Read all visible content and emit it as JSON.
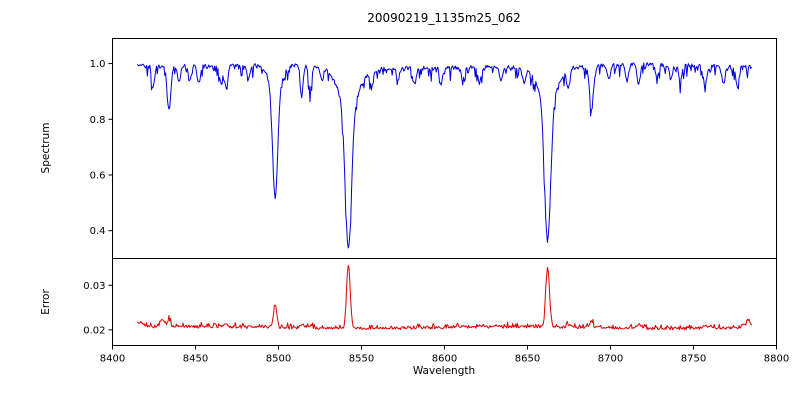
{
  "axes": {
    "xlabel": "Wavelength",
    "xlim": [
      8400,
      8800
    ],
    "xticks": [
      8400,
      8450,
      8500,
      8550,
      8600,
      8650,
      8700,
      8750,
      8800
    ],
    "xtick_labels": [
      "8400",
      "8450",
      "8500",
      "8550",
      "8600",
      "8650",
      "8700",
      "8750",
      "8800"
    ]
  },
  "chart_data": [
    {
      "type": "line",
      "panel": "spectrum",
      "title": "20090219_1135m25_062",
      "ylabel": "Spectrum",
      "color": "#0000dd",
      "ylim": [
        0.3,
        1.09
      ],
      "yticks": [
        0.4,
        0.6,
        0.8,
        1.0
      ],
      "ytick_labels": [
        "0.4",
        "0.6",
        "0.8",
        "1.0"
      ],
      "x_start": 8415,
      "x_end": 8785,
      "continuum": 0.99,
      "noise": {
        "jitter": 0.012,
        "dip_strength": 0.045
      },
      "absorption_lines": [
        {
          "wavelength": 8498.0,
          "depth": 0.4,
          "width": 1.5
        },
        {
          "wavelength": 8498.0,
          "depth": 0.08,
          "width": 4.0
        },
        {
          "wavelength": 8542.1,
          "depth": 0.52,
          "width": 1.9
        },
        {
          "wavelength": 8542.1,
          "depth": 0.13,
          "width": 6.5
        },
        {
          "wavelength": 8662.1,
          "depth": 0.5,
          "width": 1.8
        },
        {
          "wavelength": 8662.1,
          "depth": 0.12,
          "width": 5.5
        },
        {
          "wavelength": 8424.5,
          "depth": 0.07,
          "width": 0.9
        },
        {
          "wavelength": 8434.0,
          "depth": 0.16,
          "width": 1.1
        },
        {
          "wavelength": 8440.0,
          "depth": 0.06,
          "width": 0.9
        },
        {
          "wavelength": 8446.5,
          "depth": 0.05,
          "width": 0.9
        },
        {
          "wavelength": 8452.0,
          "depth": 0.06,
          "width": 0.9
        },
        {
          "wavelength": 8465.5,
          "depth": 0.06,
          "width": 0.9
        },
        {
          "wavelength": 8468.5,
          "depth": 0.07,
          "width": 0.9
        },
        {
          "wavelength": 8482.0,
          "depth": 0.05,
          "width": 0.9
        },
        {
          "wavelength": 8514.0,
          "depth": 0.1,
          "width": 0.9
        },
        {
          "wavelength": 8519.0,
          "depth": 0.09,
          "width": 0.9
        },
        {
          "wavelength": 8526.0,
          "depth": 0.04,
          "width": 0.9
        },
        {
          "wavelength": 8556.0,
          "depth": 0.05,
          "width": 0.9
        },
        {
          "wavelength": 8572.0,
          "depth": 0.04,
          "width": 0.9
        },
        {
          "wavelength": 8582.0,
          "depth": 0.06,
          "width": 0.9
        },
        {
          "wavelength": 8598.0,
          "depth": 0.06,
          "width": 0.9
        },
        {
          "wavelength": 8611.0,
          "depth": 0.05,
          "width": 0.9
        },
        {
          "wavelength": 8621.0,
          "depth": 0.06,
          "width": 0.9
        },
        {
          "wavelength": 8634.0,
          "depth": 0.05,
          "width": 0.9
        },
        {
          "wavelength": 8648.0,
          "depth": 0.05,
          "width": 0.9
        },
        {
          "wavelength": 8674.5,
          "depth": 0.07,
          "width": 0.9
        },
        {
          "wavelength": 8688.5,
          "depth": 0.15,
          "width": 1.2
        },
        {
          "wavelength": 8699.0,
          "depth": 0.05,
          "width": 0.9
        },
        {
          "wavelength": 8710.0,
          "depth": 0.06,
          "width": 0.9
        },
        {
          "wavelength": 8717.0,
          "depth": 0.07,
          "width": 0.9
        },
        {
          "wavelength": 8728.0,
          "depth": 0.05,
          "width": 0.9
        },
        {
          "wavelength": 8736.5,
          "depth": 0.05,
          "width": 0.9
        },
        {
          "wavelength": 8742.0,
          "depth": 0.06,
          "width": 0.9
        },
        {
          "wavelength": 8757.0,
          "depth": 0.07,
          "width": 0.9
        },
        {
          "wavelength": 8768.0,
          "depth": 0.06,
          "width": 0.9
        },
        {
          "wavelength": 8776.5,
          "depth": 0.07,
          "width": 0.9
        }
      ]
    },
    {
      "type": "line",
      "panel": "error",
      "ylabel": "Error",
      "color": "#e00000",
      "ylim": [
        0.0165,
        0.036
      ],
      "yticks": [
        0.02,
        0.03
      ],
      "ytick_labels": [
        "0.02",
        "0.03"
      ],
      "x_start": 8415,
      "x_end": 8785,
      "baseline": 0.0205,
      "noise": {
        "jitter": 0.0006,
        "spike_strength": 0.001
      },
      "peaks": [
        {
          "wavelength": 8416.0,
          "height": 0.0012,
          "width": 3.0
        },
        {
          "wavelength": 8430.0,
          "height": 0.0017,
          "width": 1.2
        },
        {
          "wavelength": 8434.0,
          "height": 0.0015,
          "width": 1.0
        },
        {
          "wavelength": 8468.0,
          "height": 0.0009,
          "width": 1.0
        },
        {
          "wavelength": 8498.0,
          "height": 0.0052,
          "width": 1.0
        },
        {
          "wavelength": 8514.0,
          "height": 0.0007,
          "width": 0.9
        },
        {
          "wavelength": 8519.0,
          "height": 0.0007,
          "width": 0.9
        },
        {
          "wavelength": 8542.1,
          "height": 0.0142,
          "width": 1.1
        },
        {
          "wavelength": 8662.1,
          "height": 0.0133,
          "width": 1.1
        },
        {
          "wavelength": 8674.5,
          "height": 0.0006,
          "width": 0.9
        },
        {
          "wavelength": 8688.5,
          "height": 0.0013,
          "width": 1.0
        },
        {
          "wavelength": 8717.0,
          "height": 0.0006,
          "width": 0.9
        },
        {
          "wavelength": 8757.0,
          "height": 0.0007,
          "width": 0.9
        },
        {
          "wavelength": 8783.0,
          "height": 0.001,
          "width": 3.0
        }
      ]
    }
  ]
}
